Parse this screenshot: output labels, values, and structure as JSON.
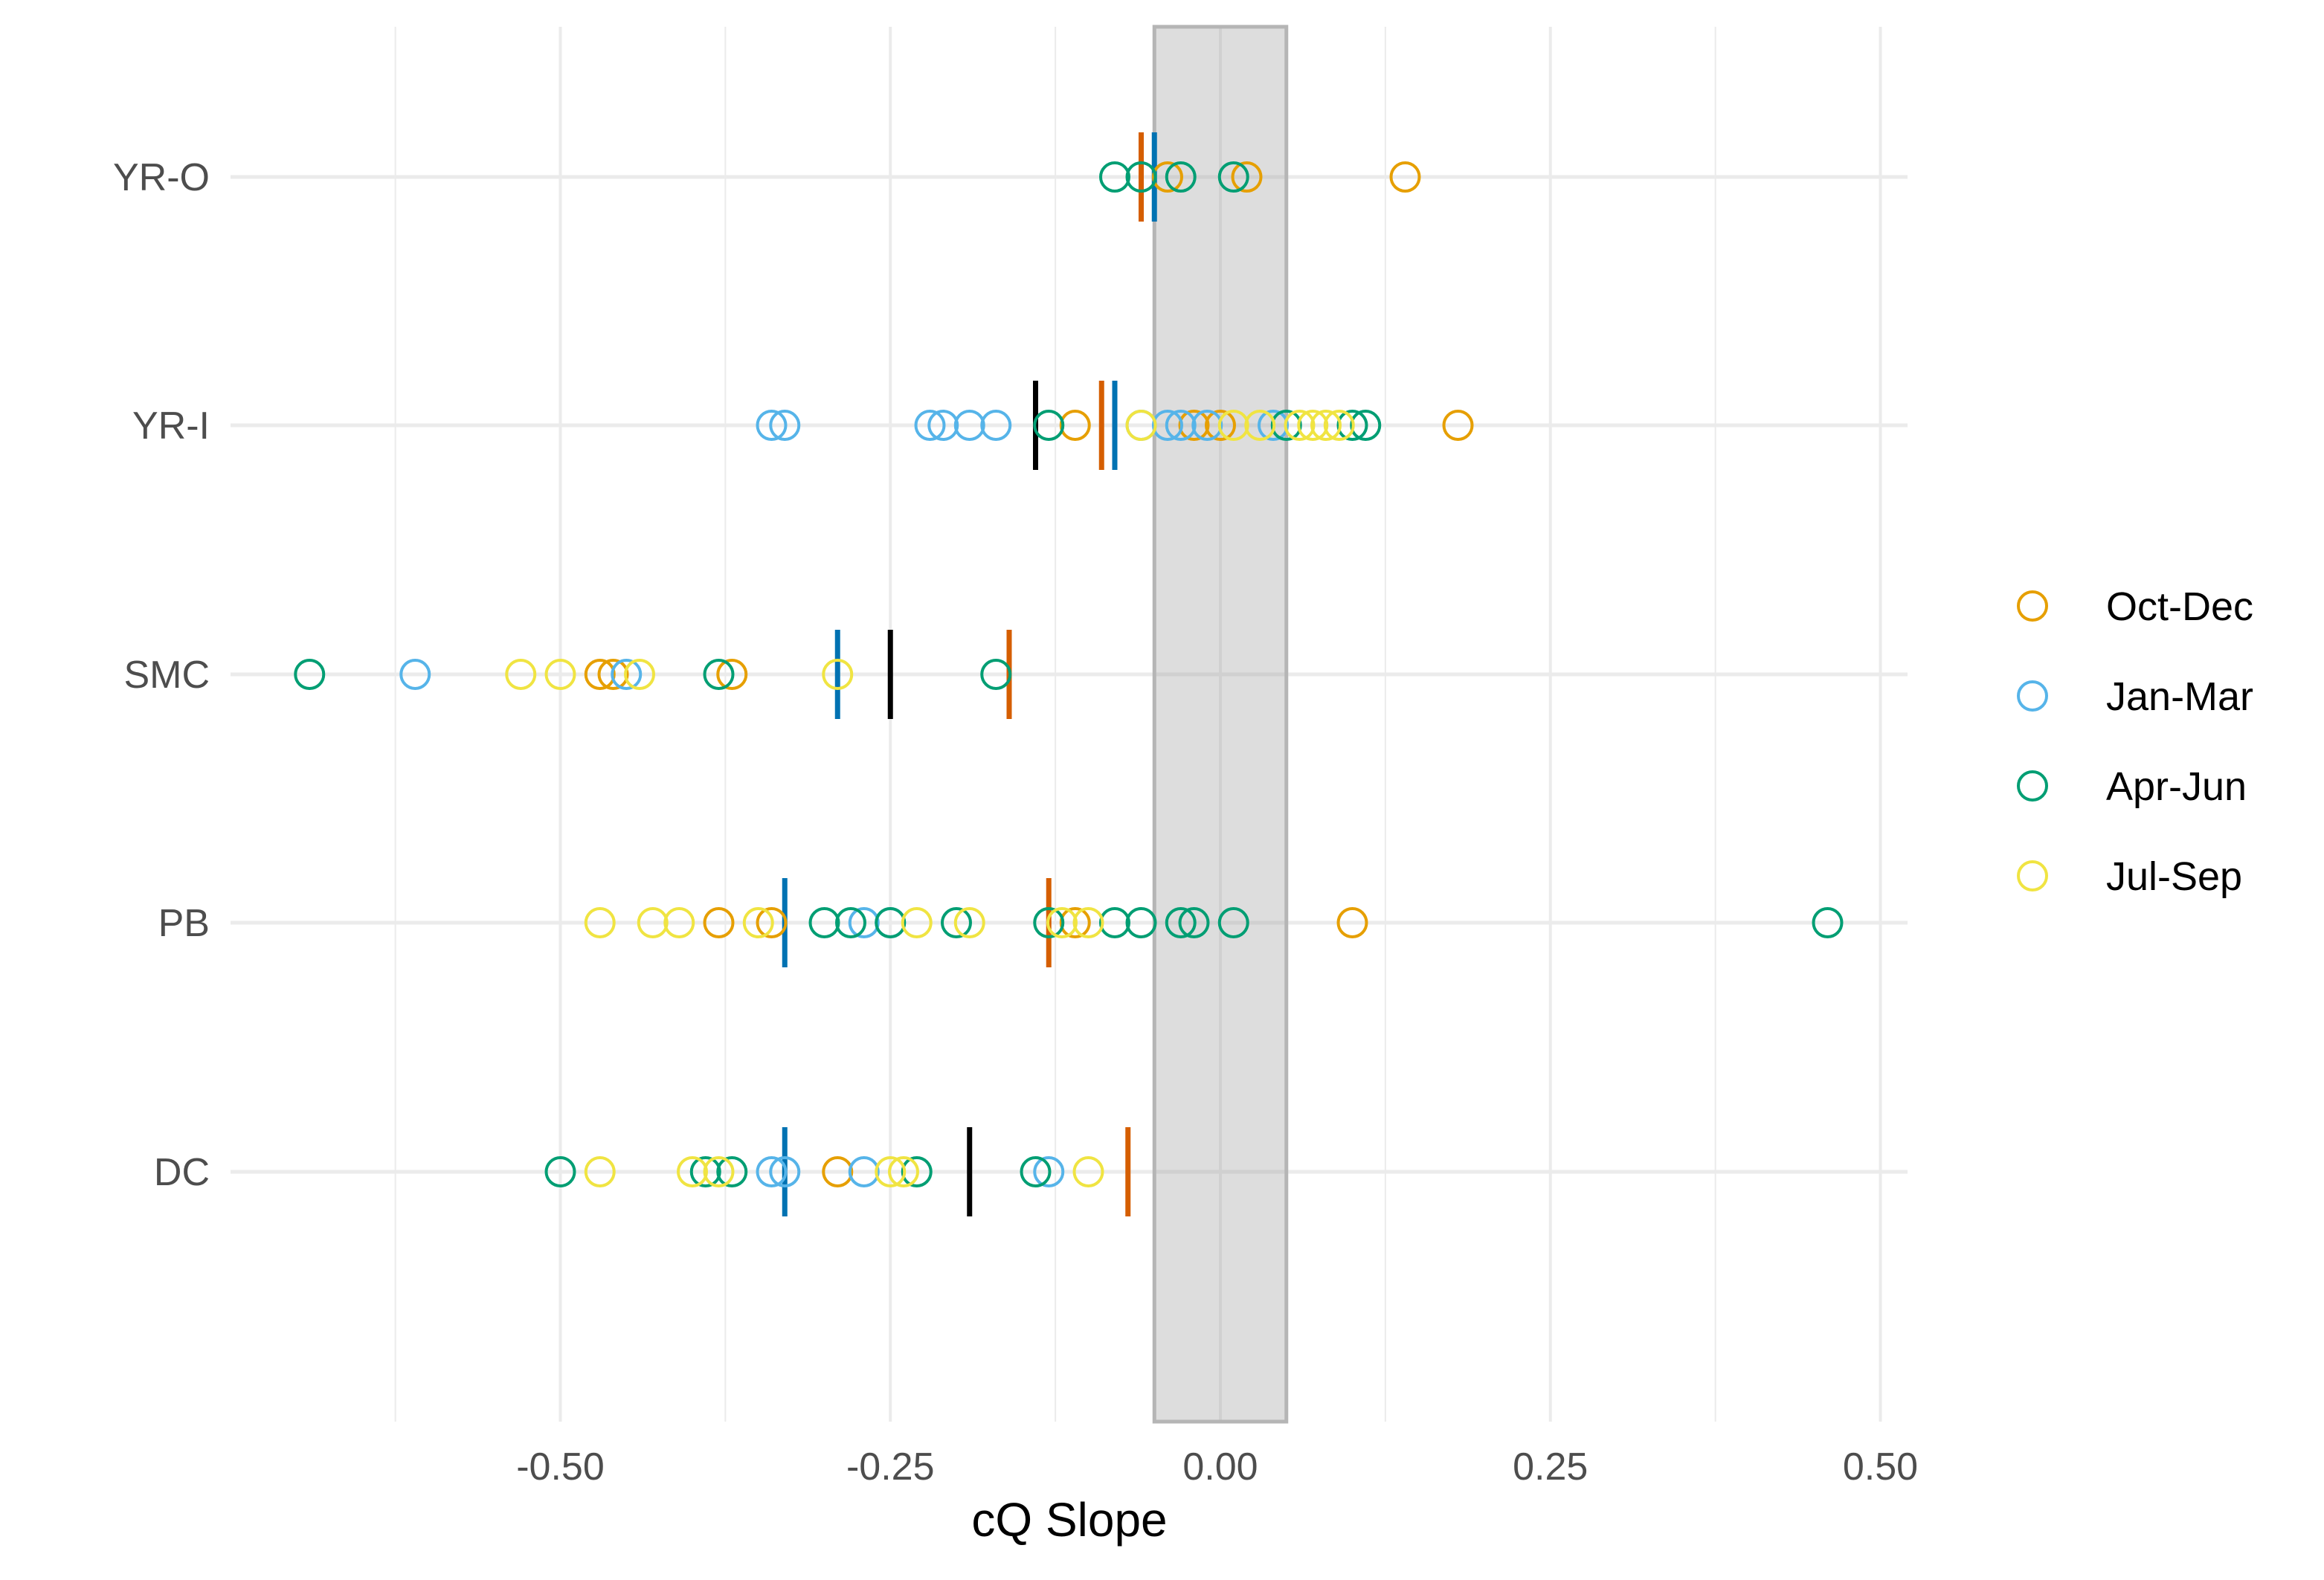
{
  "chart_data": {
    "type": "scatter",
    "title": "",
    "xlabel": "cQ Slope",
    "ylabel": "",
    "xlim": [
      -0.72,
      0.52
    ],
    "x_ticks": [
      -0.5,
      -0.25,
      0.0,
      0.25,
      0.5
    ],
    "x_tick_labels": [
      "-0.50",
      "-0.25",
      "0.00",
      "0.25",
      "0.50"
    ],
    "categories": [
      "YR-O",
      "YR-I",
      "SMC",
      "PB",
      "DC"
    ],
    "shaded_band": [
      -0.05,
      0.05
    ],
    "legend_position": "right",
    "grid": true,
    "series": [
      {
        "name": "Oct-Dec",
        "color": "#E69F00",
        "points": [
          [
            "YR-O",
            -0.04
          ],
          [
            "YR-O",
            0.02
          ],
          [
            "YR-O",
            0.14
          ],
          [
            "YR-I",
            -0.11
          ],
          [
            "YR-I",
            -0.02
          ],
          [
            "YR-I",
            0.0
          ],
          [
            "YR-I",
            0.18
          ],
          [
            "SMC",
            -0.47
          ],
          [
            "SMC",
            -0.46
          ],
          [
            "SMC",
            -0.37
          ],
          [
            "PB",
            -0.38
          ],
          [
            "PB",
            -0.34
          ],
          [
            "PB",
            -0.11
          ],
          [
            "PB",
            0.1
          ],
          [
            "DC",
            -0.29
          ]
        ]
      },
      {
        "name": "Jan-Mar",
        "color": "#56B4E9",
        "points": [
          [
            "YR-I",
            -0.34
          ],
          [
            "YR-I",
            -0.33
          ],
          [
            "YR-I",
            -0.22
          ],
          [
            "YR-I",
            -0.21
          ],
          [
            "YR-I",
            -0.19
          ],
          [
            "YR-I",
            -0.17
          ],
          [
            "YR-I",
            -0.06
          ],
          [
            "YR-I",
            -0.04
          ],
          [
            "YR-I",
            -0.03
          ],
          [
            "YR-I",
            -0.01
          ],
          [
            "YR-I",
            0.04
          ],
          [
            "SMC",
            -0.61
          ],
          [
            "SMC",
            -0.45
          ],
          [
            "PB",
            -0.27
          ],
          [
            "PB",
            -0.25
          ],
          [
            "DC",
            -0.34
          ],
          [
            "DC",
            -0.33
          ],
          [
            "DC",
            -0.27
          ],
          [
            "DC",
            -0.13
          ]
        ]
      },
      {
        "name": "Apr-Jun",
        "color": "#009E73",
        "points": [
          [
            "YR-O",
            -0.08
          ],
          [
            "YR-O",
            -0.06
          ],
          [
            "YR-O",
            -0.03
          ],
          [
            "YR-O",
            0.01
          ],
          [
            "YR-I",
            -0.13
          ],
          [
            "YR-I",
            0.05
          ],
          [
            "YR-I",
            0.1
          ],
          [
            "YR-I",
            0.11
          ],
          [
            "SMC",
            -0.69
          ],
          [
            "SMC",
            -0.38
          ],
          [
            "SMC",
            -0.17
          ],
          [
            "PB",
            -0.3
          ],
          [
            "PB",
            -0.28
          ],
          [
            "PB",
            -0.25
          ],
          [
            "PB",
            -0.2
          ],
          [
            "PB",
            -0.13
          ],
          [
            "PB",
            -0.08
          ],
          [
            "PB",
            -0.06
          ],
          [
            "PB",
            -0.03
          ],
          [
            "PB",
            -0.02
          ],
          [
            "PB",
            0.01
          ],
          [
            "PB",
            0.46
          ],
          [
            "DC",
            -0.5
          ],
          [
            "DC",
            -0.39
          ],
          [
            "DC",
            -0.37
          ],
          [
            "DC",
            -0.23
          ],
          [
            "DC",
            -0.14
          ]
        ]
      },
      {
        "name": "Jul-Sep",
        "color": "#F0E442",
        "points": [
          [
            "YR-I",
            -0.06
          ],
          [
            "YR-I",
            0.01
          ],
          [
            "YR-I",
            0.03
          ],
          [
            "YR-I",
            0.06
          ],
          [
            "YR-I",
            0.07
          ],
          [
            "YR-I",
            0.08
          ],
          [
            "YR-I",
            0.09
          ],
          [
            "SMC",
            -0.53
          ],
          [
            "SMC",
            -0.5
          ],
          [
            "SMC",
            -0.44
          ],
          [
            "SMC",
            -0.29
          ],
          [
            "PB",
            -0.47
          ],
          [
            "PB",
            -0.43
          ],
          [
            "PB",
            -0.41
          ],
          [
            "PB",
            -0.35
          ],
          [
            "PB",
            -0.23
          ],
          [
            "PB",
            -0.19
          ],
          [
            "PB",
            -0.12
          ],
          [
            "PB",
            -0.1
          ],
          [
            "DC",
            -0.47
          ],
          [
            "DC",
            -0.4
          ],
          [
            "DC",
            -0.38
          ],
          [
            "DC",
            -0.25
          ],
          [
            "DC",
            -0.24
          ],
          [
            "DC",
            -0.1
          ]
        ]
      }
    ],
    "median_markers": [
      {
        "category": "YR-O",
        "x": -0.06,
        "color": "#D55E00"
      },
      {
        "category": "YR-O",
        "x": -0.05,
        "color": "#0072B2"
      },
      {
        "category": "YR-I",
        "x": -0.14,
        "color": "#000000"
      },
      {
        "category": "YR-I",
        "x": -0.09,
        "color": "#D55E00"
      },
      {
        "category": "YR-I",
        "x": -0.08,
        "color": "#0072B2"
      },
      {
        "category": "SMC",
        "x": -0.29,
        "color": "#0072B2"
      },
      {
        "category": "SMC",
        "x": -0.25,
        "color": "#000000"
      },
      {
        "category": "SMC",
        "x": -0.16,
        "color": "#D55E00"
      },
      {
        "category": "PB",
        "x": -0.33,
        "color": "#0072B2"
      },
      {
        "category": "PB",
        "x": -0.13,
        "color": "#D55E00"
      },
      {
        "category": "DC",
        "x": -0.33,
        "color": "#0072B2"
      },
      {
        "category": "DC",
        "x": -0.19,
        "color": "#000000"
      },
      {
        "category": "DC",
        "x": -0.07,
        "color": "#D55E00"
      }
    ]
  }
}
